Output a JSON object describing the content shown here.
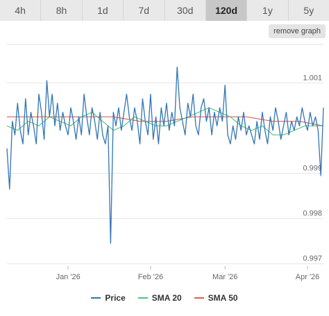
{
  "tabs": [
    {
      "label": "4h",
      "active": false
    },
    {
      "label": "8h",
      "active": false
    },
    {
      "label": "1d",
      "active": false
    },
    {
      "label": "7d",
      "active": false
    },
    {
      "label": "30d",
      "active": false
    },
    {
      "label": "120d",
      "active": true
    },
    {
      "label": "1y",
      "active": false
    },
    {
      "label": "5y",
      "active": false
    }
  ],
  "remove_graph_label": "remove graph",
  "colors": {
    "price": "#2f74b5",
    "sma20": "#49c57b",
    "sma50": "#e25b4f",
    "grid": "#e6e6e6"
  },
  "chart_data": {
    "type": "line",
    "title": "",
    "xlabel": "",
    "ylabel": "",
    "ylim": [
      0.99695,
      1.00185
    ],
    "yticks": [
      {
        "value": 1.001,
        "label": "1.001"
      },
      {
        "value": 0.999,
        "label": "0.999"
      },
      {
        "value": 0.998,
        "label": "0.998"
      },
      {
        "value": 0.997,
        "label": "0.997"
      }
    ],
    "x_range": [
      "2025-12-09",
      "2026-04-07"
    ],
    "xticks": [
      {
        "date": "2026-01-01",
        "label": "Jan '26"
      },
      {
        "date": "2026-02-01",
        "label": "Feb '26"
      },
      {
        "date": "2026-03-01",
        "label": "Mar '26"
      },
      {
        "date": "2026-04-01",
        "label": "Apr '26"
      }
    ],
    "grid": true,
    "legend_position": "bottom",
    "series": [
      {
        "name": "Price",
        "key": "price",
        "x": [
          "2025-12-09",
          "2025-12-10",
          "2025-12-11",
          "2025-12-12",
          "2025-12-13",
          "2025-12-14",
          "2025-12-15",
          "2025-12-16",
          "2025-12-17",
          "2025-12-18",
          "2025-12-19",
          "2025-12-20",
          "2025-12-21",
          "2025-12-22",
          "2025-12-23",
          "2025-12-24",
          "2025-12-25",
          "2025-12-26",
          "2025-12-27",
          "2025-12-28",
          "2025-12-29",
          "2025-12-30",
          "2025-12-31",
          "2026-01-01",
          "2026-01-02",
          "2026-01-03",
          "2026-01-04",
          "2026-01-05",
          "2026-01-06",
          "2026-01-07",
          "2026-01-08",
          "2026-01-09",
          "2026-01-10",
          "2026-01-11",
          "2026-01-12",
          "2026-01-13",
          "2026-01-14",
          "2026-01-15",
          "2026-01-16",
          "2026-01-17",
          "2026-01-18",
          "2026-01-19",
          "2026-01-20",
          "2026-01-21",
          "2026-01-22",
          "2026-01-23",
          "2026-01-24",
          "2026-01-25",
          "2026-01-26",
          "2026-01-27",
          "2026-01-28",
          "2026-01-29",
          "2026-01-30",
          "2026-01-31",
          "2026-02-01",
          "2026-02-02",
          "2026-02-03",
          "2026-02-04",
          "2026-02-05",
          "2026-02-06",
          "2026-02-07",
          "2026-02-08",
          "2026-02-09",
          "2026-02-10",
          "2026-02-11",
          "2026-02-12",
          "2026-02-13",
          "2026-02-14",
          "2026-02-15",
          "2026-02-16",
          "2026-02-17",
          "2026-02-18",
          "2026-02-19",
          "2026-02-20",
          "2026-02-21",
          "2026-02-22",
          "2026-02-23",
          "2026-02-24",
          "2026-02-25",
          "2026-02-26",
          "2026-02-27",
          "2026-02-28",
          "2026-03-01",
          "2026-03-02",
          "2026-03-03",
          "2026-03-04",
          "2026-03-05",
          "2026-03-06",
          "2026-03-07",
          "2026-03-08",
          "2026-03-09",
          "2026-03-10",
          "2026-03-11",
          "2026-03-12",
          "2026-03-13",
          "2026-03-14",
          "2026-03-15",
          "2026-03-16",
          "2026-03-17",
          "2026-03-18",
          "2026-03-19",
          "2026-03-20",
          "2026-03-21",
          "2026-03-22",
          "2026-03-23",
          "2026-03-24",
          "2026-03-25",
          "2026-03-26",
          "2026-03-27",
          "2026-03-28",
          "2026-03-29",
          "2026-03-30",
          "2026-03-31",
          "2026-04-01",
          "2026-04-02",
          "2026-04-03",
          "2026-04-04",
          "2026-04-05",
          "2026-04-06",
          "2026-04-07"
        ],
        "y": [
          0.99955,
          0.99865,
          1.00015,
          0.99985,
          1.00055,
          0.99995,
          0.99965,
          1.00065,
          0.99985,
          1.00035,
          1.00005,
          0.99965,
          1.00075,
          1.00035,
          0.99975,
          1.00105,
          1.00025,
          1.00075,
          1.00005,
          1.00055,
          0.99995,
          1.00035,
          1.00005,
          0.99985,
          1.00045,
          1.00015,
          0.99975,
          1.00025,
          0.99985,
          1.00075,
          1.00025,
          0.99985,
          1.00045,
          1.00015,
          0.99975,
          1.00035,
          0.99985,
          0.99965,
          1.00005,
          0.99745,
          1.00035,
          1.00005,
          1.00045,
          0.99995,
          1.00035,
          1.00075,
          1.00025,
          0.99995,
          1.00045,
          1.00015,
          0.99965,
          1.00065,
          1.00015,
          0.99985,
          1.00075,
          0.99975,
          1.00025,
          0.99965,
          1.00045,
          1.00005,
          1.00055,
          0.99995,
          1.00035,
          1.00005,
          1.00135,
          1.00045,
          1.00015,
          0.99985,
          1.00055,
          1.00025,
          1.00075,
          1.00005,
          0.99985,
          1.00045,
          1.00065,
          1.00015,
          1.00045,
          0.99985,
          1.00035,
          1.00005,
          1.00045,
          1.00015,
          1.00095,
          0.99985,
          0.99965,
          1.00005,
          0.99975,
          1.00025,
          0.99995,
          1.00035,
          0.99985,
          1.00005,
          0.99985,
          0.99965,
          1.00015,
          0.99975,
          1.00035,
          0.99995,
          0.99965,
          1.00025,
          0.99995,
          1.00045,
          1.00015,
          0.99975,
          1.00005,
          1.00035,
          0.99985,
          1.00015,
          0.99995,
          1.00025,
          1.00005,
          1.00045,
          1.00015,
          0.99995,
          1.00035,
          1.00005,
          1.00025,
          0.99995,
          0.99895,
          1.00045
        ]
      },
      {
        "name": "SMA 20",
        "key": "sma20",
        "x": [
          "2025-12-09",
          "2025-12-13",
          "2025-12-17",
          "2025-12-21",
          "2025-12-25",
          "2025-12-29",
          "2026-01-02",
          "2026-01-06",
          "2026-01-10",
          "2026-01-14",
          "2026-01-18",
          "2026-01-22",
          "2026-01-26",
          "2026-01-30",
          "2026-02-03",
          "2026-02-07",
          "2026-02-11",
          "2026-02-15",
          "2026-02-19",
          "2026-02-23",
          "2026-02-27",
          "2026-03-03",
          "2026-03-07",
          "2026-03-11",
          "2026-03-15",
          "2026-03-19",
          "2026-03-23",
          "2026-03-27",
          "2026-03-31",
          "2026-04-04",
          "2026-04-07"
        ],
        "y": [
          1.00005,
          0.99995,
          1.00015,
          1.00005,
          1.00025,
          1.00015,
          1.00005,
          1.00025,
          1.00035,
          1.00015,
          0.99995,
          1.00005,
          1.00025,
          1.00015,
          1.00005,
          1.00005,
          1.00015,
          1.00025,
          1.00035,
          1.00045,
          1.00035,
          1.00025,
          1.00005,
          0.99995,
          1.00005,
          0.99985,
          0.99985,
          0.99995,
          1.00005,
          1.00005,
          1.00005
        ]
      },
      {
        "name": "SMA 50",
        "key": "sma50",
        "x": [
          "2025-12-09",
          "2025-12-19",
          "2025-12-29",
          "2026-01-08",
          "2026-01-18",
          "2026-01-28",
          "2026-02-07",
          "2026-02-17",
          "2026-02-27",
          "2026-03-09",
          "2026-03-19",
          "2026-03-29",
          "2026-04-07"
        ],
        "y": [
          1.00025,
          1.00025,
          1.00025,
          1.00025,
          1.00025,
          1.00015,
          1.00015,
          1.00025,
          1.00025,
          1.00025,
          1.00015,
          1.00015,
          1.00005
        ]
      }
    ]
  }
}
